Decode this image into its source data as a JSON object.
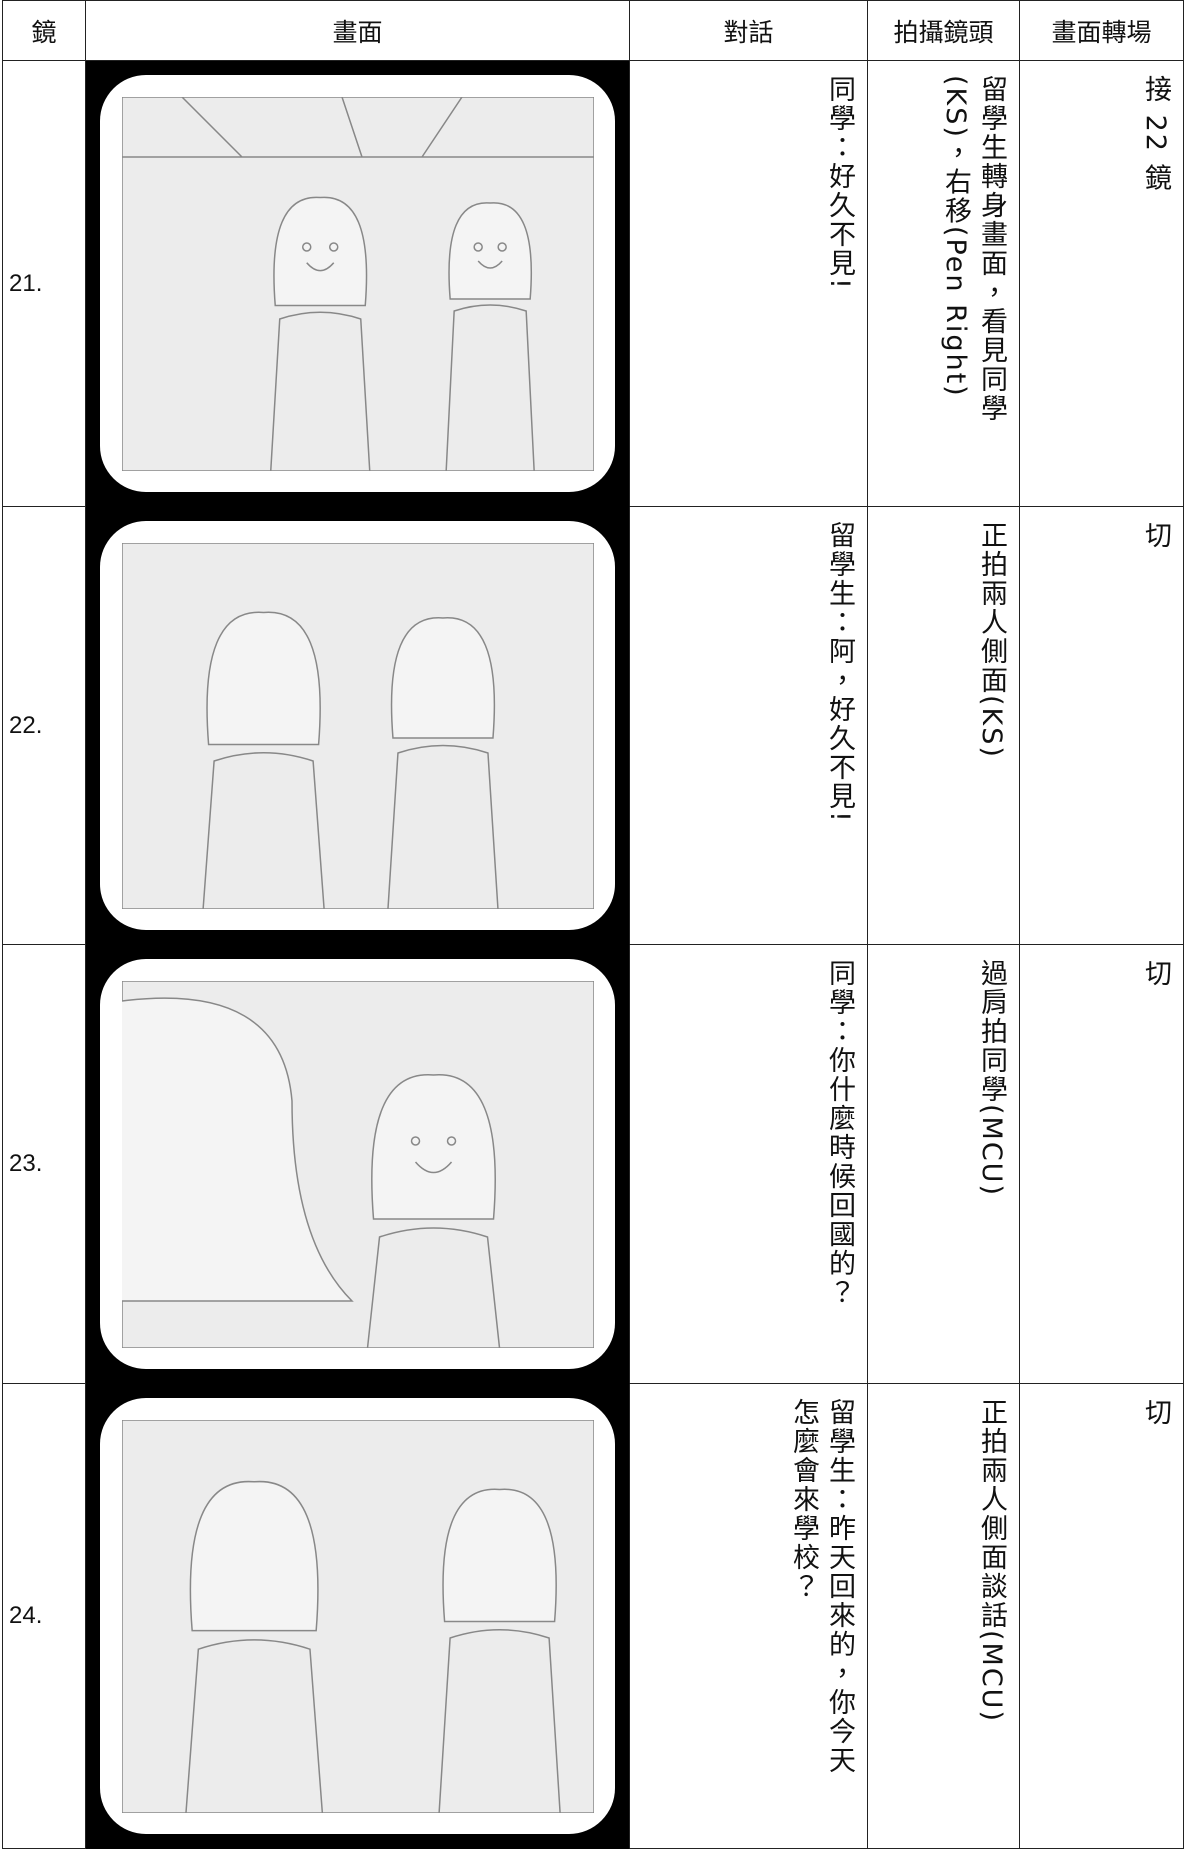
{
  "header": [
    "鏡",
    "畫面",
    "對話",
    "拍攝鏡頭",
    "畫面轉場"
  ],
  "rows": [
    {
      "shot": "21.",
      "dialogue": [
        "同學：好久不見!"
      ],
      "camera": [
        "留學生轉身畫面，看見同學",
        "(KS)，右移(Pen Right)"
      ],
      "transition": "接 22 鏡"
    },
    {
      "shot": "22.",
      "dialogue": [
        "留學生：阿，好久不見!"
      ],
      "camera": [
        "正拍兩人側面(KS)"
      ],
      "transition": "切"
    },
    {
      "shot": "23.",
      "dialogue": [
        "同學：你什麼時候回國的？"
      ],
      "camera": [
        "過肩拍同學(MCU)"
      ],
      "transition": "切"
    },
    {
      "shot": "24.",
      "dialogue": [
        "留學生：昨天回來的，你今天",
        "怎麼會來學校？"
      ],
      "camera": [
        "正拍兩人側面談話(MCU)"
      ],
      "transition": "切"
    }
  ]
}
